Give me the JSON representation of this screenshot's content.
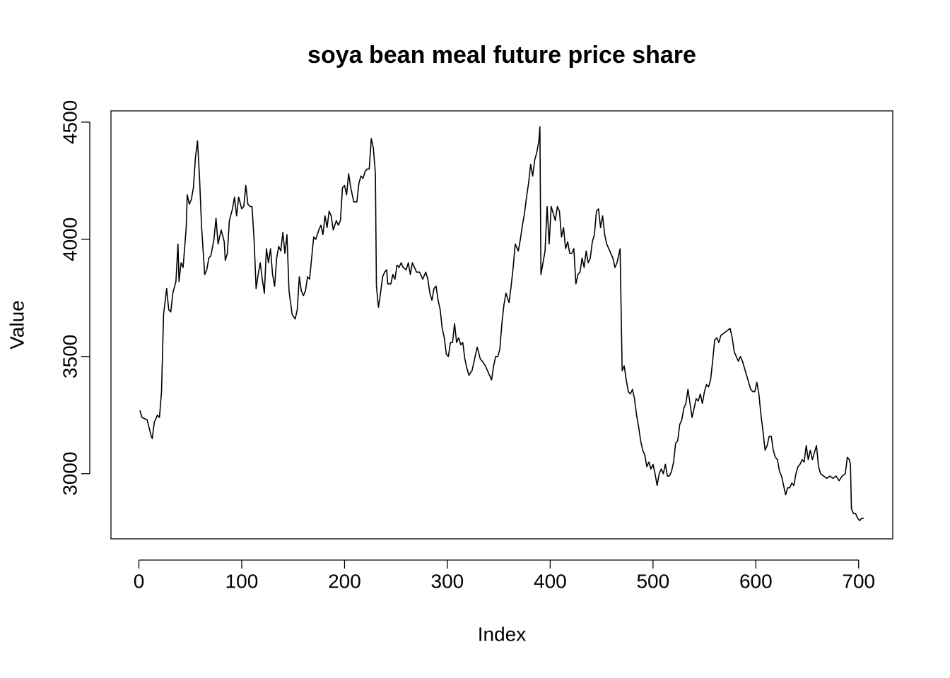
{
  "chart_data": {
    "type": "line",
    "title": "soya bean meal future price share",
    "x_label": "Index",
    "y_label": "Value",
    "xlim": [
      -27.16,
      733.16
    ],
    "ylim": [
      2722,
      4548
    ],
    "xticks": [
      0,
      100,
      200,
      300,
      400,
      500,
      600,
      700
    ],
    "yticks": [
      3000,
      3500,
      4000,
      4500
    ],
    "color": "#000000",
    "grid": false,
    "x": [
      1,
      3,
      8,
      12,
      13,
      15,
      18,
      20,
      22,
      24,
      27,
      29,
      31,
      33,
      36,
      38,
      39,
      41,
      43,
      46,
      47,
      49,
      51,
      53,
      55,
      57,
      59,
      61,
      64,
      66,
      68,
      70,
      73,
      75,
      77,
      80,
      83,
      84,
      86,
      88,
      91,
      93,
      95,
      97,
      100,
      102,
      104,
      106,
      108,
      110,
      112,
      114,
      116,
      118,
      120,
      122,
      124,
      126,
      128,
      130,
      132,
      134,
      136,
      138,
      140,
      142,
      144,
      146,
      149,
      152,
      154,
      156,
      158,
      160,
      162,
      164,
      166,
      168,
      170,
      172,
      175,
      177,
      179,
      181,
      183,
      185,
      187,
      189,
      192,
      194,
      196,
      198,
      200,
      202,
      204,
      206,
      209,
      212,
      214,
      216,
      218,
      220,
      222,
      224,
      226,
      228,
      230,
      231,
      233,
      235,
      237,
      239,
      241,
      242,
      245,
      247,
      249,
      251,
      253,
      255,
      257,
      260,
      262,
      264,
      266,
      268,
      270,
      273,
      276,
      279,
      281,
      283,
      285,
      287,
      289,
      291,
      293,
      295,
      297,
      299,
      301,
      303,
      305,
      307,
      309,
      311,
      313,
      315,
      317,
      319,
      321,
      324,
      326,
      329,
      332,
      334,
      337,
      339,
      341,
      343,
      345,
      347,
      349,
      351,
      353,
      355,
      357,
      360,
      362,
      364,
      366,
      369,
      371,
      373,
      375,
      377,
      379,
      381,
      383,
      385,
      387,
      389,
      390,
      391,
      393,
      395,
      397,
      399,
      401,
      403,
      405,
      407,
      409,
      411,
      413,
      415,
      417,
      419,
      421,
      423,
      425,
      427,
      429,
      431,
      433,
      435,
      437,
      439,
      441,
      443,
      445,
      447,
      449,
      451,
      453,
      455,
      457,
      459,
      461,
      463,
      465,
      467,
      468,
      470,
      472,
      474,
      476,
      478,
      480,
      482,
      484,
      486,
      488,
      490,
      492,
      494,
      496,
      498,
      500,
      502,
      504,
      506,
      508,
      510,
      512,
      514,
      516,
      518,
      520,
      522,
      524,
      526,
      528,
      530,
      532,
      534,
      536,
      538,
      540,
      542,
      544,
      546,
      548,
      550,
      552,
      554,
      556,
      558,
      560,
      562,
      564,
      566,
      569,
      572,
      575,
      577,
      579,
      581,
      583,
      585,
      587,
      589,
      591,
      593,
      595,
      597,
      599,
      601,
      603,
      605,
      607,
      609,
      611,
      613,
      615,
      617,
      619,
      621,
      623,
      625,
      627,
      629,
      631,
      633,
      635,
      637,
      639,
      641,
      643,
      645,
      647,
      649,
      651,
      653,
      655,
      657,
      659,
      661,
      663,
      666,
      669,
      672,
      675,
      678,
      681,
      684,
      687,
      689,
      691,
      692,
      693,
      695,
      697,
      699,
      701,
      703,
      705
    ],
    "values": [
      3270,
      3240,
      3230,
      3160,
      3150,
      3220,
      3250,
      3240,
      3350,
      3680,
      3790,
      3700,
      3690,
      3770,
      3820,
      3980,
      3820,
      3900,
      3880,
      4050,
      4190,
      4150,
      4170,
      4220,
      4350,
      4420,
      4260,
      4050,
      3850,
      3870,
      3920,
      3930,
      4000,
      4090,
      3980,
      4040,
      3990,
      3910,
      3940,
      4080,
      4130,
      4180,
      4100,
      4180,
      4130,
      4140,
      4230,
      4150,
      4140,
      4140,
      4000,
      3790,
      3850,
      3900,
      3830,
      3770,
      3960,
      3900,
      3960,
      3850,
      3800,
      3920,
      3970,
      3950,
      4030,
      3940,
      4020,
      3780,
      3680,
      3660,
      3700,
      3840,
      3780,
      3760,
      3780,
      3840,
      3830,
      3920,
      4010,
      4000,
      4040,
      4060,
      4020,
      4100,
      4050,
      4120,
      4100,
      4040,
      4080,
      4060,
      4080,
      4220,
      4230,
      4190,
      4280,
      4220,
      4160,
      4160,
      4240,
      4270,
      4260,
      4290,
      4300,
      4300,
      4430,
      4390,
      4280,
      3800,
      3710,
      3770,
      3840,
      3860,
      3870,
      3810,
      3810,
      3850,
      3830,
      3890,
      3880,
      3900,
      3880,
      3870,
      3900,
      3850,
      3900,
      3880,
      3860,
      3860,
      3830,
      3860,
      3830,
      3770,
      3740,
      3790,
      3800,
      3740,
      3700,
      3620,
      3580,
      3510,
      3500,
      3560,
      3560,
      3640,
      3560,
      3580,
      3550,
      3560,
      3490,
      3450,
      3420,
      3440,
      3480,
      3540,
      3490,
      3480,
      3460,
      3440,
      3420,
      3400,
      3460,
      3500,
      3500,
      3530,
      3640,
      3720,
      3770,
      3730,
      3800,
      3880,
      3980,
      3950,
      4000,
      4060,
      4110,
      4180,
      4240,
      4320,
      4270,
      4340,
      4370,
      4420,
      4480,
      3850,
      3900,
      3950,
      4140,
      3980,
      4140,
      4110,
      4080,
      4140,
      4120,
      4010,
      4050,
      3960,
      3990,
      3940,
      3940,
      3960,
      3810,
      3850,
      3860,
      3920,
      3880,
      3950,
      3900,
      3920,
      3990,
      4020,
      4120,
      4130,
      4050,
      4100,
      4020,
      3980,
      3960,
      3940,
      3920,
      3880,
      3900,
      3940,
      3960,
      3440,
      3460,
      3400,
      3350,
      3340,
      3360,
      3320,
      3250,
      3200,
      3140,
      3100,
      3080,
      3030,
      3050,
      3020,
      3040,
      3000,
      2950,
      3000,
      3020,
      3000,
      3040,
      2990,
      2990,
      3010,
      3050,
      3130,
      3140,
      3210,
      3230,
      3280,
      3300,
      3360,
      3300,
      3240,
      3280,
      3320,
      3310,
      3340,
      3300,
      3350,
      3380,
      3370,
      3400,
      3480,
      3570,
      3580,
      3560,
      3590,
      3600,
      3610,
      3620,
      3580,
      3520,
      3500,
      3480,
      3500,
      3480,
      3450,
      3420,
      3390,
      3360,
      3350,
      3350,
      3390,
      3340,
      3250,
      3180,
      3100,
      3120,
      3160,
      3160,
      3100,
      3070,
      3060,
      3010,
      2990,
      2950,
      2910,
      2940,
      2940,
      2960,
      2950,
      3000,
      3030,
      3040,
      3060,
      3050,
      3120,
      3060,
      3100,
      3060,
      3090,
      3120,
      3030,
      3000,
      2990,
      2980,
      2990,
      2980,
      2990,
      2970,
      2990,
      3000,
      3070,
      3060,
      3040,
      2850,
      2830,
      2830,
      2810,
      2800,
      2810,
      2810
    ]
  }
}
